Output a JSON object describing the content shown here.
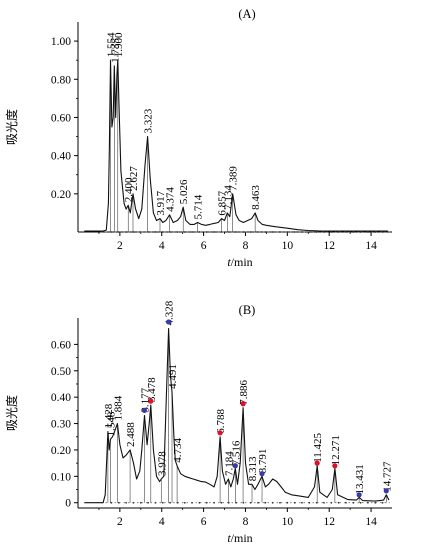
{
  "chart_data": [
    {
      "type": "line",
      "title": "(A)",
      "xlabel_italic": "t",
      "xlabel_unit": "/min",
      "ylabel": "吸光度",
      "xlim": [
        0,
        15
      ],
      "ylim": [
        0,
        1.1
      ],
      "xticks": [
        2,
        4,
        6,
        8,
        10,
        12,
        14
      ],
      "yticks": [
        0.2,
        0.4,
        0.6,
        0.8,
        1.0
      ],
      "ytick_labels": [
        "0.20",
        "0.40",
        "0.60",
        "0.80",
        "1.00"
      ],
      "grid": false,
      "peaks": [
        {
          "x": 1.554,
          "label": "1.554",
          "y": 0.9
        },
        {
          "x": 1.735,
          "label": "1.735",
          "y": 0.87
        },
        {
          "x": 1.9,
          "label": "1.900",
          "y": 0.9
        },
        {
          "x": 2.4,
          "label": "2.400",
          "y": 0.14
        },
        {
          "x": 2.627,
          "label": "2.627",
          "y": 0.2
        },
        {
          "x": 3.323,
          "label": "3.323",
          "y": 0.5
        },
        {
          "x": 3.917,
          "label": "3.917",
          "y": 0.07
        },
        {
          "x": 4.374,
          "label": "4.374",
          "y": 0.09
        },
        {
          "x": 5.026,
          "label": "5.026",
          "y": 0.13
        },
        {
          "x": 5.714,
          "label": "5.714",
          "y": 0.05
        },
        {
          "x": 6.857,
          "label": "6.857",
          "y": 0.07
        },
        {
          "x": 7.134,
          "label": "7.134",
          "y": 0.1
        },
        {
          "x": 7.389,
          "label": "7.389",
          "y": 0.2
        },
        {
          "x": 8.463,
          "label": "8.463",
          "y": 0.1
        }
      ],
      "trace": [
        [
          0.3,
          0.005
        ],
        [
          1.2,
          0.005
        ],
        [
          1.35,
          0.01
        ],
        [
          1.45,
          0.15
        ],
        [
          1.5,
          0.45
        ],
        [
          1.554,
          0.9
        ],
        [
          1.62,
          0.55
        ],
        [
          1.68,
          0.6
        ],
        [
          1.735,
          0.87
        ],
        [
          1.8,
          0.6
        ],
        [
          1.86,
          0.82
        ],
        [
          1.9,
          0.9
        ],
        [
          1.95,
          0.7
        ],
        [
          2.05,
          0.32
        ],
        [
          2.2,
          0.15
        ],
        [
          2.3,
          0.12
        ],
        [
          2.4,
          0.14
        ],
        [
          2.5,
          0.1
        ],
        [
          2.627,
          0.2
        ],
        [
          2.75,
          0.12
        ],
        [
          2.9,
          0.07
        ],
        [
          3.05,
          0.12
        ],
        [
          3.2,
          0.35
        ],
        [
          3.323,
          0.5
        ],
        [
          3.45,
          0.28
        ],
        [
          3.6,
          0.1
        ],
        [
          3.75,
          0.06
        ],
        [
          3.917,
          0.07
        ],
        [
          4.05,
          0.05
        ],
        [
          4.2,
          0.06
        ],
        [
          4.374,
          0.09
        ],
        [
          4.55,
          0.05
        ],
        [
          4.75,
          0.06
        ],
        [
          4.9,
          0.08
        ],
        [
          5.026,
          0.13
        ],
        [
          5.15,
          0.06
        ],
        [
          5.35,
          0.04
        ],
        [
          5.55,
          0.04
        ],
        [
          5.714,
          0.05
        ],
        [
          5.9,
          0.04
        ],
        [
          6.1,
          0.035
        ],
        [
          6.3,
          0.04
        ],
        [
          6.5,
          0.045
        ],
        [
          6.7,
          0.05
        ],
        [
          6.857,
          0.07
        ],
        [
          7.0,
          0.06
        ],
        [
          7.134,
          0.1
        ],
        [
          7.25,
          0.08
        ],
        [
          7.389,
          0.2
        ],
        [
          7.55,
          0.09
        ],
        [
          7.7,
          0.06
        ],
        [
          7.9,
          0.05
        ],
        [
          8.1,
          0.06
        ],
        [
          8.3,
          0.07
        ],
        [
          8.463,
          0.1
        ],
        [
          8.6,
          0.06
        ],
        [
          8.8,
          0.04
        ],
        [
          9.0,
          0.035
        ],
        [
          9.3,
          0.03
        ],
        [
          9.6,
          0.025
        ],
        [
          10.0,
          0.02
        ],
        [
          10.5,
          0.012
        ],
        [
          11.0,
          0.008
        ],
        [
          11.5,
          0.006
        ],
        [
          12.5,
          0.005
        ],
        [
          14.8,
          0.005
        ]
      ]
    },
    {
      "type": "line",
      "title": "(B)",
      "xlabel_italic": "t",
      "xlabel_unit": "/min",
      "ylabel": "吸光度",
      "xlim": [
        0,
        15
      ],
      "ylim": [
        -0.02,
        0.7
      ],
      "xticks": [
        2,
        4,
        6,
        8,
        10,
        12,
        14
      ],
      "yticks": [
        0,
        0.1,
        0.2,
        0.3,
        0.4,
        0.5,
        0.6
      ],
      "ytick_labels": [
        "0",
        "0.10",
        "0.20",
        "0.30",
        "0.40",
        "0.50",
        "0.60"
      ],
      "grid": false,
      "peaks": [
        {
          "x": 1.428,
          "label": "1.428",
          "y": 0.27
        },
        {
          "x": 1.548,
          "label": "1.548",
          "y": 0.24
        },
        {
          "x": 1.884,
          "label": "1.884",
          "y": 0.3
        },
        {
          "x": 2.488,
          "label": "2.488",
          "y": 0.2
        },
        {
          "x": 3.177,
          "label": "3.177",
          "y": 0.33
        },
        {
          "x": 3.478,
          "label": "3.478",
          "y": 0.37
        },
        {
          "x": 3.978,
          "label": "3.978",
          "y": 0.09
        },
        {
          "x": 4.328,
          "label": "4.328",
          "y": 0.66
        },
        {
          "x": 4.491,
          "label": "4.491",
          "y": 0.42
        },
        {
          "x": 4.734,
          "label": "4.734",
          "y": 0.14
        },
        {
          "x": 6.788,
          "label": "6.788",
          "y": 0.25
        },
        {
          "x": 7.184,
          "label": "7.184",
          "y": 0.09
        },
        {
          "x": 7.516,
          "label": "7.516",
          "y": 0.13
        },
        {
          "x": 7.886,
          "label": "7.886",
          "y": 0.36
        },
        {
          "x": 8.313,
          "label": "8.313",
          "y": 0.07
        },
        {
          "x": 8.791,
          "label": "8.791",
          "y": 0.1
        },
        {
          "x": 11.425,
          "label": "11.425",
          "y": 0.14
        },
        {
          "x": 12.271,
          "label": "12.271",
          "y": 0.13
        },
        {
          "x": 13.431,
          "label": "13.431",
          "y": 0.02
        },
        {
          "x": 14.727,
          "label": "14.727",
          "y": 0.03
        }
      ],
      "markers": [
        {
          "x": 3.177,
          "y": 0.35,
          "color": "#3a3aa8"
        },
        {
          "x": 3.478,
          "y": 0.385,
          "color": "#e0102a"
        },
        {
          "x": 4.328,
          "y": 0.685,
          "color": "#3a3aa8"
        },
        {
          "x": 6.788,
          "y": 0.265,
          "color": "#e0102a"
        },
        {
          "x": 7.516,
          "y": 0.14,
          "color": "#3a3aa8"
        },
        {
          "x": 7.886,
          "y": 0.375,
          "color": "#e0102a"
        },
        {
          "x": 8.791,
          "y": 0.11,
          "color": "#3a3aa8"
        },
        {
          "x": 11.425,
          "y": 0.15,
          "color": "#e0102a"
        },
        {
          "x": 12.271,
          "y": 0.14,
          "color": "#e0102a"
        },
        {
          "x": 13.431,
          "y": 0.03,
          "color": "#3a3aa8"
        },
        {
          "x": 14.727,
          "y": 0.045,
          "color": "#3a3aa8"
        }
      ],
      "trace": [
        [
          0.3,
          0.0
        ],
        [
          1.2,
          0.0
        ],
        [
          1.3,
          0.03
        ],
        [
          1.38,
          0.18
        ],
        [
          1.428,
          0.27
        ],
        [
          1.49,
          0.2
        ],
        [
          1.548,
          0.24
        ],
        [
          1.65,
          0.25
        ],
        [
          1.75,
          0.27
        ],
        [
          1.884,
          0.3
        ],
        [
          2.0,
          0.22
        ],
        [
          2.15,
          0.17
        ],
        [
          2.3,
          0.18
        ],
        [
          2.488,
          0.2
        ],
        [
          2.65,
          0.15
        ],
        [
          2.8,
          0.09
        ],
        [
          2.95,
          0.12
        ],
        [
          3.05,
          0.2
        ],
        [
          3.177,
          0.33
        ],
        [
          3.3,
          0.22
        ],
        [
          3.4,
          0.3
        ],
        [
          3.478,
          0.37
        ],
        [
          3.6,
          0.2
        ],
        [
          3.75,
          0.1
        ],
        [
          3.9,
          0.08
        ],
        [
          3.978,
          0.09
        ],
        [
          4.1,
          0.1
        ],
        [
          4.2,
          0.35
        ],
        [
          4.328,
          0.66
        ],
        [
          4.42,
          0.48
        ],
        [
          4.491,
          0.42
        ],
        [
          4.58,
          0.25
        ],
        [
          4.65,
          0.16
        ],
        [
          4.734,
          0.14
        ],
        [
          4.9,
          0.11
        ],
        [
          5.1,
          0.1
        ],
        [
          5.3,
          0.095
        ],
        [
          5.5,
          0.09
        ],
        [
          5.7,
          0.085
        ],
        [
          5.9,
          0.08
        ],
        [
          6.1,
          0.078
        ],
        [
          6.3,
          0.07
        ],
        [
          6.5,
          0.06
        ],
        [
          6.65,
          0.1
        ],
        [
          6.788,
          0.25
        ],
        [
          6.9,
          0.12
        ],
        [
          7.05,
          0.07
        ],
        [
          7.184,
          0.09
        ],
        [
          7.3,
          0.06
        ],
        [
          7.42,
          0.09
        ],
        [
          7.516,
          0.13
        ],
        [
          7.62,
          0.07
        ],
        [
          7.75,
          0.15
        ],
        [
          7.886,
          0.36
        ],
        [
          8.0,
          0.15
        ],
        [
          8.15,
          0.07
        ],
        [
          8.313,
          0.07
        ],
        [
          8.45,
          0.05
        ],
        [
          8.6,
          0.07
        ],
        [
          8.791,
          0.1
        ],
        [
          8.95,
          0.06
        ],
        [
          9.1,
          0.07
        ],
        [
          9.3,
          0.09
        ],
        [
          9.5,
          0.08
        ],
        [
          9.7,
          0.06
        ],
        [
          9.9,
          0.04
        ],
        [
          10.2,
          0.03
        ],
        [
          10.6,
          0.025
        ],
        [
          11.0,
          0.02
        ],
        [
          11.3,
          0.06
        ],
        [
          11.425,
          0.14
        ],
        [
          11.55,
          0.04
        ],
        [
          11.9,
          0.02
        ],
        [
          12.15,
          0.05
        ],
        [
          12.271,
          0.13
        ],
        [
          12.4,
          0.03
        ],
        [
          12.9,
          0.012
        ],
        [
          13.3,
          0.01
        ],
        [
          13.431,
          0.02
        ],
        [
          13.6,
          0.008
        ],
        [
          14.2,
          0.006
        ],
        [
          14.6,
          0.01
        ],
        [
          14.727,
          0.03
        ],
        [
          14.85,
          0.01
        ]
      ]
    }
  ]
}
